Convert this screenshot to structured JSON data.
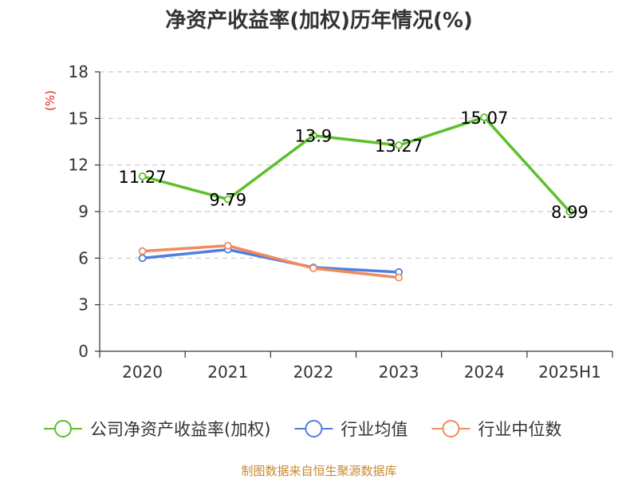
{
  "chart_data": {
    "type": "line",
    "title": "净资产收益率(加权)历年情况(%)",
    "ylabel": "(%)",
    "categories": [
      "2020",
      "2021",
      "2022",
      "2023",
      "2024",
      "2025H1"
    ],
    "ylim": [
      0,
      18
    ],
    "yticks": [
      "0",
      "3",
      "6",
      "9",
      "12",
      "15",
      "18"
    ],
    "grid": true,
    "legend_position": "bottom",
    "series": [
      {
        "name": "公司净资产收益率(加权)",
        "color": "#5cc02a",
        "values": [
          11.27,
          9.79,
          13.9,
          13.27,
          15.07,
          8.99
        ],
        "labels": [
          "11.27",
          "9.79",
          "13.9",
          "13.27",
          "15.07",
          "8.99"
        ]
      },
      {
        "name": "行业均值",
        "color": "#4f7fe0",
        "values": [
          6.0,
          6.55,
          5.4,
          5.1,
          null,
          null
        ]
      },
      {
        "name": "行业中位数",
        "color": "#f28a5a",
        "values": [
          6.45,
          6.8,
          5.35,
          4.75,
          null,
          null
        ]
      }
    ]
  },
  "colors": {
    "ylabel": "#e02020",
    "source": "#c9892b",
    "grid": "#c8c8c8",
    "axis": "#333333"
  },
  "source": "制图数据来自恒生聚源数据库"
}
